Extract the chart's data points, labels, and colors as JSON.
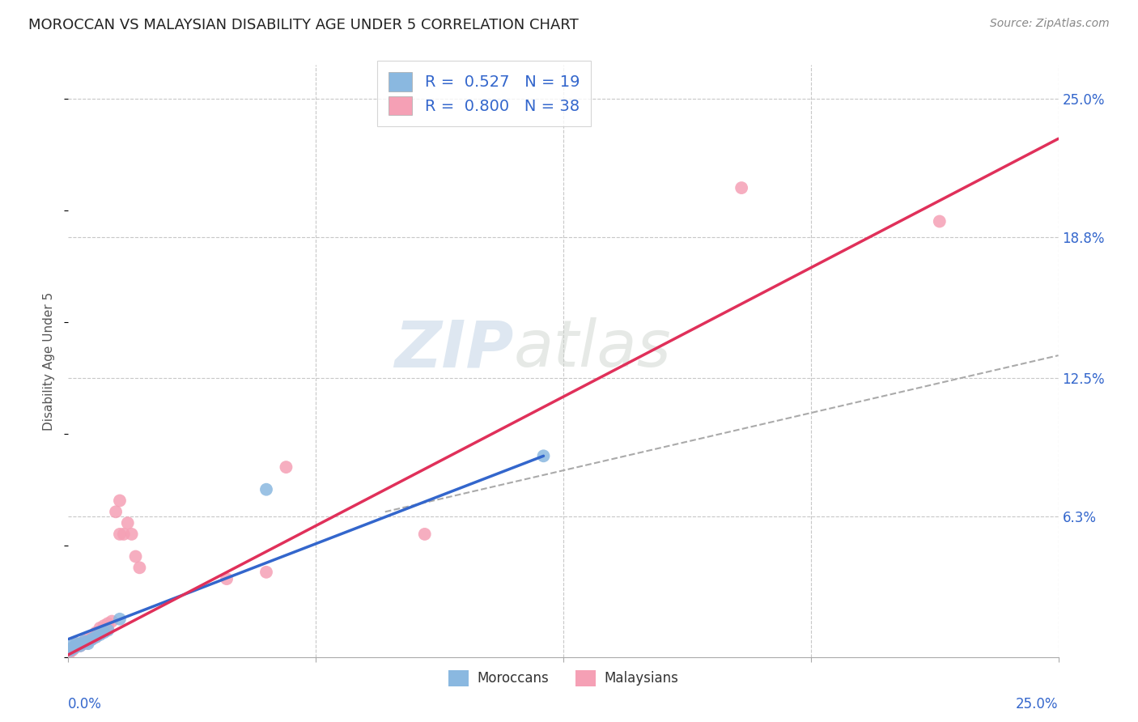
{
  "title": "MOROCCAN VS MALAYSIAN DISABILITY AGE UNDER 5 CORRELATION CHART",
  "source": "Source: ZipAtlas.com",
  "ylabel": "Disability Age Under 5",
  "right_yticks": [
    "25.0%",
    "18.8%",
    "12.5%",
    "6.3%"
  ],
  "right_ytick_vals": [
    0.25,
    0.188,
    0.125,
    0.063
  ],
  "watermark": "ZIPatlas",
  "moroccans_R": "0.527",
  "moroccans_N": "19",
  "malaysians_R": "0.800",
  "malaysians_N": "38",
  "moroccans_color": "#8ab8e0",
  "malaysians_color": "#f5a0b5",
  "moroccans_line_color": "#3366cc",
  "malaysians_line_color": "#e0305a",
  "moroccans_x": [
    0.0005,
    0.001,
    0.001,
    0.0015,
    0.002,
    0.002,
    0.003,
    0.003,
    0.004,
    0.005,
    0.005,
    0.006,
    0.007,
    0.008,
    0.009,
    0.01,
    0.013,
    0.05,
    0.12
  ],
  "moroccans_y": [
    0.003,
    0.004,
    0.005,
    0.004,
    0.005,
    0.006,
    0.005,
    0.006,
    0.007,
    0.006,
    0.007,
    0.008,
    0.009,
    0.01,
    0.011,
    0.012,
    0.017,
    0.075,
    0.09
  ],
  "malaysians_x": [
    0.0003,
    0.0005,
    0.001,
    0.001,
    0.0015,
    0.002,
    0.002,
    0.003,
    0.003,
    0.004,
    0.004,
    0.005,
    0.005,
    0.006,
    0.006,
    0.007,
    0.007,
    0.008,
    0.008,
    0.009,
    0.009,
    0.01,
    0.01,
    0.011,
    0.012,
    0.013,
    0.013,
    0.014,
    0.015,
    0.016,
    0.017,
    0.018,
    0.04,
    0.05,
    0.055,
    0.09,
    0.17,
    0.22
  ],
  "malaysians_y": [
    0.002,
    0.003,
    0.003,
    0.004,
    0.004,
    0.005,
    0.006,
    0.005,
    0.006,
    0.006,
    0.007,
    0.007,
    0.008,
    0.008,
    0.009,
    0.009,
    0.011,
    0.011,
    0.013,
    0.012,
    0.014,
    0.013,
    0.015,
    0.016,
    0.065,
    0.07,
    0.055,
    0.055,
    0.06,
    0.055,
    0.045,
    0.04,
    0.035,
    0.038,
    0.085,
    0.055,
    0.21,
    0.195
  ],
  "xlim": [
    0.0,
    0.25
  ],
  "ylim": [
    0.0,
    0.265
  ],
  "background_color": "#ffffff",
  "grid_color": "#c8c8c8",
  "moroccans_line_x": [
    0.0,
    0.12
  ],
  "moroccans_line_y": [
    0.008,
    0.09
  ],
  "malaysians_line_x": [
    0.0,
    0.25
  ],
  "malaysians_line_y": [
    0.001,
    0.232
  ],
  "dash_line_x": [
    0.08,
    0.25
  ],
  "dash_line_y": [
    0.065,
    0.135
  ]
}
